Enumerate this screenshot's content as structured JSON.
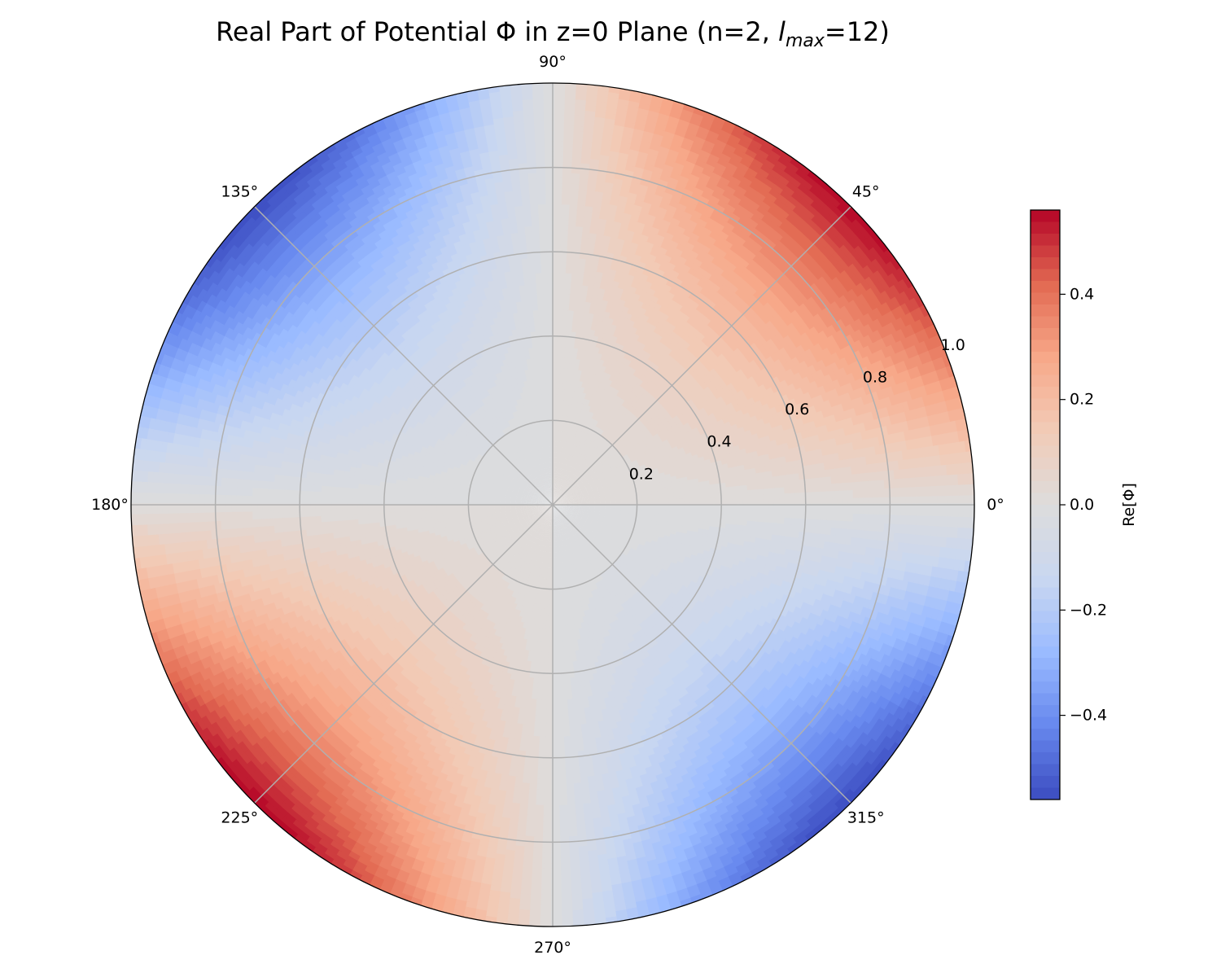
{
  "chart_data": {
    "type": "polar-contour",
    "title": {
      "main": "Real Part of Potential Φ in z=0 Plane (n=2, ",
      "italic_base": "l",
      "italic_sub": "max",
      "tail": "=12)"
    },
    "field": {
      "description_formula": "Re[Φ] ≈ amplitude · r² · sin(2θ)",
      "amplitude": 0.56,
      "angular_order": 2,
      "radial_power": 2
    },
    "radial_axis": {
      "range": [
        0,
        1.0
      ],
      "ticks": [
        0.2,
        0.4,
        0.6,
        0.8,
        1.0
      ],
      "tick_labels": [
        "0.2",
        "0.4",
        "0.6",
        "0.8",
        "1.0"
      ],
      "label_angle_deg": 22.5
    },
    "angular_axis": {
      "ticks_deg": [
        0,
        45,
        90,
        135,
        180,
        225,
        270,
        315
      ],
      "tick_labels": [
        "0°",
        "45°",
        "90°",
        "135°",
        "180°",
        "225°",
        "270°",
        "315°"
      ]
    },
    "grid": true,
    "colorbar": {
      "label": "Re[Φ]",
      "range": [
        -0.56,
        0.56
      ],
      "ticks": [
        -0.4,
        -0.2,
        0.0,
        0.2,
        0.4
      ],
      "tick_labels": [
        "−0.4",
        "−0.2",
        "0.0",
        "0.2",
        "0.4"
      ],
      "colormap": "coolwarm",
      "levels": 50,
      "stops": [
        "#3b4cc0",
        "#6788ee",
        "#9abbff",
        "#c9d7f0",
        "#dddcdc",
        "#f2cbb7",
        "#f7a889",
        "#e26952",
        "#b40426"
      ]
    },
    "colors": {
      "grid": "#b0b0b0",
      "frame": "#000000",
      "background": "#ffffff"
    }
  }
}
